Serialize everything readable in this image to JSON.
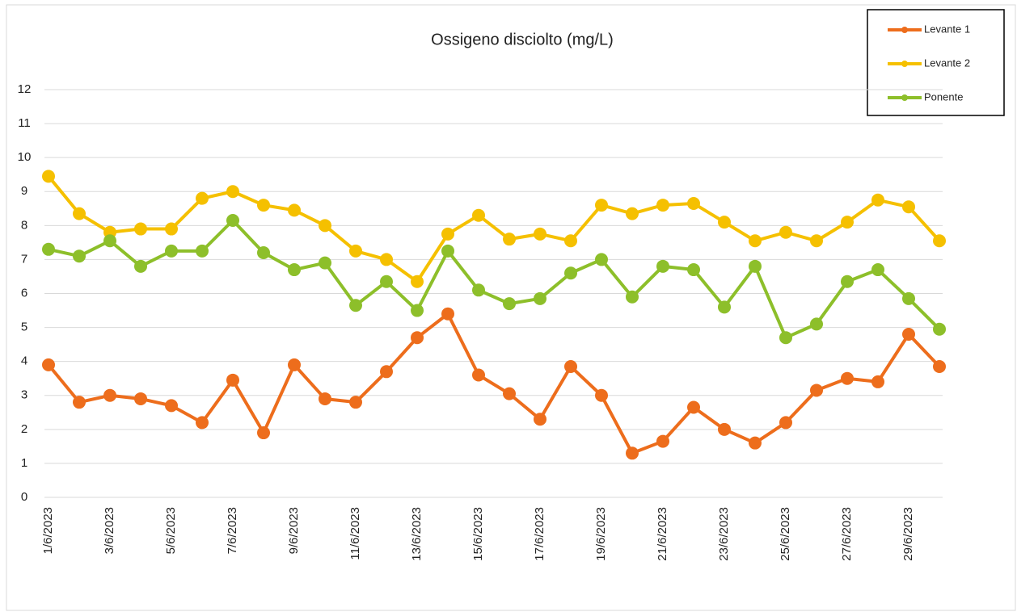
{
  "chart_data": {
    "type": "line",
    "title": "Ossigeno disciolto (mg/L)",
    "categories": [
      "1/6/2023",
      null,
      "3/6/2023",
      null,
      "5/6/2023",
      null,
      "7/6/2023",
      null,
      "9/6/2023",
      null,
      "11/6/2023",
      null,
      "13/6/2023",
      null,
      "15/6/2023",
      null,
      "17/6/2023",
      null,
      "19/6/2023",
      null,
      "21/6/2023",
      null,
      "23/6/2023",
      null,
      "25/6/2023",
      null,
      "27/6/2023",
      null,
      "29/6/2023",
      null
    ],
    "series": [
      {
        "name": "Levante 1",
        "color": "#ed6d1c",
        "values": [
          3.9,
          2.8,
          3.0,
          2.9,
          2.7,
          2.2,
          3.45,
          1.9,
          3.9,
          2.9,
          2.8,
          3.7,
          4.7,
          5.4,
          3.6,
          3.05,
          2.3,
          3.85,
          3.0,
          1.3,
          1.65,
          2.65,
          2.0,
          1.6,
          2.2,
          3.15,
          3.5,
          3.4,
          4.8,
          3.85
        ]
      },
      {
        "name": "Levante 2",
        "color": "#f5c000",
        "values": [
          9.45,
          8.35,
          7.8,
          7.9,
          7.9,
          8.8,
          9.0,
          8.6,
          8.45,
          8.0,
          7.25,
          7.0,
          6.35,
          7.75,
          8.3,
          7.6,
          7.75,
          7.55,
          8.6,
          8.35,
          8.6,
          8.65,
          8.1,
          7.55,
          7.8,
          7.55,
          8.1,
          8.75,
          8.55,
          7.55
        ]
      },
      {
        "name": "Ponente",
        "color": "#8dbf2a",
        "values": [
          7.3,
          7.1,
          7.55,
          6.8,
          7.25,
          7.25,
          8.15,
          7.2,
          6.7,
          6.9,
          5.65,
          6.35,
          5.5,
          7.25,
          6.1,
          5.7,
          5.85,
          6.6,
          7.0,
          5.9,
          6.8,
          6.7,
          5.6,
          6.8,
          4.7,
          5.1,
          6.35,
          6.7,
          5.85,
          4.95
        ]
      }
    ],
    "ylim": [
      0,
      12
    ],
    "yticks": [
      0,
      1,
      2,
      3,
      4,
      5,
      6,
      7,
      8,
      9,
      10,
      11,
      12
    ],
    "grid": true,
    "legend": "top-right"
  }
}
